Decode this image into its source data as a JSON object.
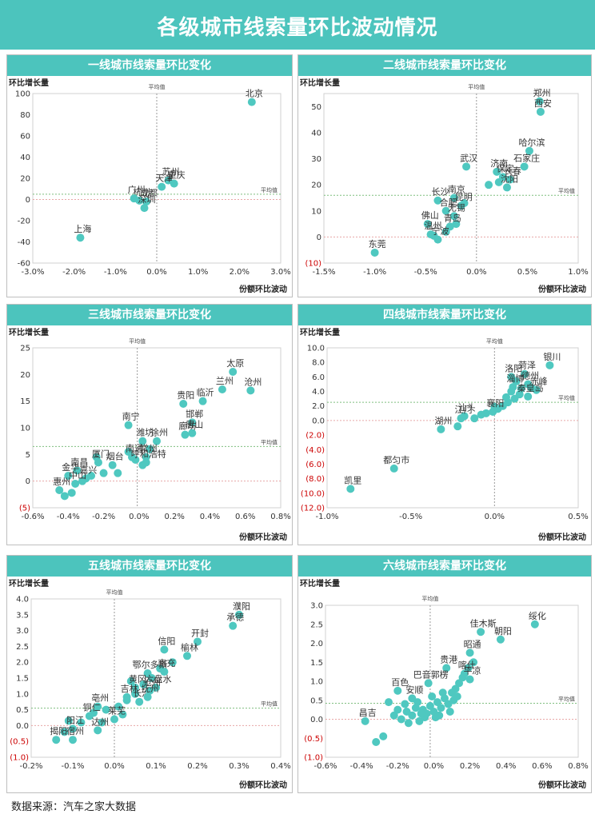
{
  "title": "各级城市线索量环比波动情况",
  "source": "数据来源：汽车之家大数据",
  "colors": {
    "accent": "#4cc4bd",
    "dot": "#4fc8c0",
    "avg_v": "#9a9a9a",
    "avg_h": "#7fbf7f",
    "zero": "#e8a6a6",
    "neg": "#cc0000"
  },
  "chart_data": [
    {
      "id": "tier1",
      "type": "scatter",
      "title": "一线城市线索量环比变化",
      "xlabel": "份额环比波动",
      "ylabel": "环比增长量",
      "avg_label_x": "平均值",
      "avg_label_y": "平均值",
      "xlim": [
        -3.0,
        3.0
      ],
      "ylim": [
        -60,
        100
      ],
      "xticks": [
        -3.0,
        -2.0,
        -1.0,
        0.0,
        1.0,
        2.0,
        3.0
      ],
      "xtick_labels": [
        "-3.0%",
        "-2.0%",
        "-1.0%",
        "0.0%",
        "1.0%",
        "2.0%",
        "3.0%"
      ],
      "yticks": [
        -60,
        -40,
        -20,
        0,
        20,
        40,
        60,
        80,
        100
      ],
      "ytick_labels": [
        "-60",
        "-40",
        "-20",
        "0",
        "20",
        "40",
        "60",
        "80",
        "100"
      ],
      "avg_x": 0.0,
      "avg_y": 5,
      "points": [
        {
          "label": "北京",
          "x": 2.3,
          "y": 92
        },
        {
          "label": "苏州",
          "x": 0.28,
          "y": 18
        },
        {
          "label": "天津",
          "x": 0.12,
          "y": 12
        },
        {
          "label": "重庆",
          "x": 0.42,
          "y": 15
        },
        {
          "label": "成都",
          "x": -0.25,
          "y": -2
        },
        {
          "label": "杭州",
          "x": -0.42,
          "y": -1
        },
        {
          "label": "广州",
          "x": -0.55,
          "y": 1
        },
        {
          "label": "深圳",
          "x": -0.3,
          "y": -8
        },
        {
          "label": "上海",
          "x": -1.85,
          "y": -36
        }
      ],
      "extra": []
    },
    {
      "id": "tier2",
      "type": "scatter",
      "title": "二线城市线索量环比变化",
      "xlabel": "份额环比波动",
      "ylabel": "环比增长量",
      "avg_label_x": "平均值",
      "avg_label_y": "平均值",
      "xlim": [
        -1.5,
        1.0
      ],
      "ylim": [
        -10,
        55
      ],
      "xticks": [
        -1.5,
        -1.0,
        -0.5,
        0.0,
        0.5,
        1.0
      ],
      "xtick_labels": [
        "-1.5%",
        "-1.0%",
        "-0.5%",
        "0.0%",
        "0.5%",
        "1.0%"
      ],
      "yticks": [
        -10,
        0,
        10,
        20,
        30,
        40,
        50
      ],
      "ytick_labels": [
        "(10)",
        "0",
        "10",
        "20",
        "30",
        "40",
        "50"
      ],
      "avg_x": 0.0,
      "avg_y": 16,
      "points": [
        {
          "label": "郑州",
          "x": 0.62,
          "y": 52
        },
        {
          "label": "西安",
          "x": 0.63,
          "y": 48
        },
        {
          "label": "哈尔滨",
          "x": 0.52,
          "y": 33
        },
        {
          "label": "石家庄",
          "x": 0.47,
          "y": 27
        },
        {
          "label": "武汉",
          "x": -0.1,
          "y": 27
        },
        {
          "label": "济南",
          "x": 0.2,
          "y": 25
        },
        {
          "label": "长春",
          "x": 0.33,
          "y": 22
        },
        {
          "label": "保定",
          "x": 0.26,
          "y": 23
        },
        {
          "label": "沈阳",
          "x": 0.3,
          "y": 19
        },
        {
          "label": "长沙",
          "x": -0.38,
          "y": 14
        },
        {
          "label": "南京",
          "x": -0.22,
          "y": 15
        },
        {
          "label": "合肥",
          "x": -0.3,
          "y": 10
        },
        {
          "label": "昆明",
          "x": -0.15,
          "y": 12
        },
        {
          "label": "无锡",
          "x": -0.22,
          "y": 8
        },
        {
          "label": "佛山",
          "x": -0.48,
          "y": 5
        },
        {
          "label": "青岛",
          "x": -0.26,
          "y": 4
        },
        {
          "label": "温州",
          "x": -0.45,
          "y": 1
        },
        {
          "label": "宁波",
          "x": -0.38,
          "y": -1
        },
        {
          "label": "东莞",
          "x": -1.0,
          "y": -6
        }
      ],
      "extra": [
        {
          "x": -0.42,
          "y": 0.5
        },
        {
          "x": -0.3,
          "y": 2
        },
        {
          "x": -0.12,
          "y": 13
        },
        {
          "x": 0.12,
          "y": 20
        },
        {
          "x": 0.22,
          "y": 21
        },
        {
          "x": -0.2,
          "y": 5
        }
      ]
    },
    {
      "id": "tier3",
      "type": "scatter",
      "title": "三线城市线索量环比变化",
      "xlabel": "份额环比波动",
      "ylabel": "环比增长量",
      "avg_label_x": "平均值",
      "avg_label_y": "平均值",
      "xlim": [
        -0.6,
        0.8
      ],
      "ylim": [
        -5,
        25
      ],
      "xticks": [
        -0.6,
        -0.4,
        -0.2,
        0.0,
        0.2,
        0.4,
        0.6,
        0.8
      ],
      "xtick_labels": [
        "-0.6%",
        "-0.4%",
        "-0.2%",
        "0.0%",
        "0.2%",
        "0.4%",
        "0.6%",
        "0.8%"
      ],
      "yticks": [
        -5,
        0,
        5,
        10,
        15,
        20,
        25
      ],
      "ytick_labels": [
        "(5)",
        "0",
        "5",
        "10",
        "15",
        "20",
        "25"
      ],
      "avg_x": -0.01,
      "avg_y": 6.5,
      "points": [
        {
          "label": "太原",
          "x": 0.53,
          "y": 20.5
        },
        {
          "label": "兰州",
          "x": 0.47,
          "y": 17.2
        },
        {
          "label": "沧州",
          "x": 0.63,
          "y": 17
        },
        {
          "label": "临沂",
          "x": 0.36,
          "y": 15
        },
        {
          "label": "贵阳",
          "x": 0.25,
          "y": 14.5
        },
        {
          "label": "邯郸",
          "x": 0.3,
          "y": 11
        },
        {
          "label": "廊坊",
          "x": 0.26,
          "y": 8.7
        },
        {
          "label": "唐山",
          "x": 0.3,
          "y": 9
        },
        {
          "label": "南宁",
          "x": -0.06,
          "y": 10.5
        },
        {
          "label": "徐州",
          "x": 0.1,
          "y": 7.5
        },
        {
          "label": "潍坊",
          "x": 0.02,
          "y": 7.5
        },
        {
          "label": "南通",
          "x": -0.04,
          "y": 4.5
        },
        {
          "label": "常州",
          "x": 0.04,
          "y": 4.5
        },
        {
          "label": "呼和浩特",
          "x": 0.04,
          "y": 3.5
        },
        {
          "label": "烟台",
          "x": -0.15,
          "y": 3
        },
        {
          "label": "厦门",
          "x": -0.23,
          "y": 3.5
        },
        {
          "label": "南昌",
          "x": -0.35,
          "y": 2
        },
        {
          "label": "金华",
          "x": -0.4,
          "y": 1
        },
        {
          "label": "嘉兴",
          "x": -0.3,
          "y": 0.5
        },
        {
          "label": "中山",
          "x": -0.36,
          "y": -0.5
        },
        {
          "label": "惠州",
          "x": -0.45,
          "y": -1.7
        }
      ],
      "extra": [
        {
          "x": -0.42,
          "y": -2.8
        },
        {
          "x": -0.38,
          "y": -2.2
        },
        {
          "x": -0.32,
          "y": 0
        },
        {
          "x": -0.27,
          "y": 1
        },
        {
          "x": -0.2,
          "y": 1.5
        },
        {
          "x": -0.12,
          "y": 1.5
        },
        {
          "x": -0.06,
          "y": 5.5
        },
        {
          "x": -0.02,
          "y": 4
        },
        {
          "x": 0.06,
          "y": 6
        },
        {
          "x": -0.24,
          "y": 4.5
        },
        {
          "x": 0.02,
          "y": 3
        }
      ]
    },
    {
      "id": "tier4",
      "type": "scatter",
      "title": "四线城市线索量环比变化",
      "xlabel": "份额环比波动",
      "ylabel": "环比增长量",
      "avg_label_x": "平均值",
      "avg_label_y": "平均值",
      "xlim": [
        -1.0,
        0.5
      ],
      "ylim": [
        -12,
        10
      ],
      "xticks": [
        -1.0,
        -0.5,
        0.0,
        0.5
      ],
      "xtick_labels": [
        "-1.0%",
        "-0.5%",
        "0.0%",
        "0.5%"
      ],
      "yticks": [
        -12,
        -10,
        -8,
        -6,
        -4,
        -2,
        0,
        2,
        4,
        6,
        8,
        10
      ],
      "ytick_labels": [
        "(12.0)",
        "(10.0)",
        "(8.0)",
        "(6.0)",
        "(4.0)",
        "(2.0)",
        "0.0",
        "2.0",
        "4.0",
        "6.0",
        "8.0",
        "10.0"
      ],
      "avg_x": 0.0,
      "avg_y": 2.5,
      "points": [
        {
          "label": "银川",
          "x": 0.33,
          "y": 7.6
        },
        {
          "label": "菏泽",
          "x": 0.18,
          "y": 6.4
        },
        {
          "label": "洛阳",
          "x": 0.1,
          "y": 6
        },
        {
          "label": "德州",
          "x": 0.2,
          "y": 5
        },
        {
          "label": "淄博",
          "x": 0.11,
          "y": 4.6
        },
        {
          "label": "赤峰",
          "x": 0.25,
          "y": 4.2
        },
        {
          "label": "秦皇岛",
          "x": 0.2,
          "y": 3.3
        },
        {
          "label": "汕头",
          "x": -0.18,
          "y": 0.6
        },
        {
          "label": "江门",
          "x": -0.2,
          "y": 0.3
        },
        {
          "label": "襄阳",
          "x": -0.01,
          "y": 1.2
        },
        {
          "label": "湖州",
          "x": -0.32,
          "y": -1.2
        },
        {
          "label": "都匀市",
          "x": -0.6,
          "y": -6.6
        },
        {
          "label": "凯里",
          "x": -0.86,
          "y": -9.4
        }
      ],
      "extra": [
        {
          "x": -0.22,
          "y": -0.8
        },
        {
          "x": -0.12,
          "y": 0.3
        },
        {
          "x": -0.08,
          "y": 0.8
        },
        {
          "x": -0.05,
          "y": 1
        },
        {
          "x": 0.02,
          "y": 1.6
        },
        {
          "x": 0.05,
          "y": 2
        },
        {
          "x": 0.08,
          "y": 2.5
        },
        {
          "x": 0.12,
          "y": 3
        },
        {
          "x": 0.15,
          "y": 3.6
        },
        {
          "x": 0.1,
          "y": 4
        },
        {
          "x": 0.16,
          "y": 4.4
        },
        {
          "x": 0.07,
          "y": 3.2
        },
        {
          "x": 0.13,
          "y": 5.4
        },
        {
          "x": 0.22,
          "y": 4.5
        },
        {
          "x": 0.0,
          "y": 1.9
        }
      ]
    },
    {
      "id": "tier5",
      "type": "scatter",
      "title": "五线城市线索量环比变化",
      "xlabel": "份额环比波动",
      "ylabel": "环比增长量",
      "avg_label_x": "平均值",
      "avg_label_y": "平均值",
      "xlim": [
        -0.2,
        0.4
      ],
      "ylim": [
        -1.0,
        4.0
      ],
      "xticks": [
        -0.2,
        -0.1,
        0.0,
        0.1,
        0.2,
        0.3,
        0.4
      ],
      "xtick_labels": [
        "-0.2%",
        "-0.1%",
        "0.0%",
        "0.1%",
        "0.2%",
        "0.3%",
        "0.4%"
      ],
      "yticks": [
        -1.0,
        -0.5,
        0.0,
        0.5,
        1.0,
        1.5,
        2.0,
        2.5,
        3.0,
        3.5,
        4.0
      ],
      "ytick_labels": [
        "(1.0)",
        "(0.5)",
        "0.0",
        "0.5",
        "1.0",
        "1.5",
        "2.0",
        "2.5",
        "3.0",
        "3.5",
        "4.0"
      ],
      "avg_x": 0.0,
      "avg_y": 0.55,
      "points": [
        {
          "label": "濮阳",
          "x": 0.3,
          "y": 3.5
        },
        {
          "label": "承德",
          "x": 0.285,
          "y": 3.15
        },
        {
          "label": "开封",
          "x": 0.2,
          "y": 2.65
        },
        {
          "label": "信阳",
          "x": 0.12,
          "y": 2.4
        },
        {
          "label": "榆林",
          "x": 0.175,
          "y": 2.2
        },
        {
          "label": "鄂尔多斯",
          "x": 0.08,
          "y": 1.65
        },
        {
          "label": "南充",
          "x": 0.12,
          "y": 1.7
        },
        {
          "label": "黄冈",
          "x": 0.05,
          "y": 1.2
        },
        {
          "label": "六盘水",
          "x": 0.1,
          "y": 1.2
        },
        {
          "label": "吉林",
          "x": 0.03,
          "y": 0.9
        },
        {
          "label": "长治",
          "x": 0.06,
          "y": 0.75
        },
        {
          "label": "沧州",
          "x": 0.085,
          "y": 1.1
        },
        {
          "label": "抚州",
          "x": 0.08,
          "y": 0.9
        },
        {
          "label": "亳州",
          "x": -0.04,
          "y": 0.6
        },
        {
          "label": "铜仁",
          "x": -0.06,
          "y": 0.3
        },
        {
          "label": "莱芜",
          "x": 0.0,
          "y": 0.2
        },
        {
          "label": "阳江",
          "x": -0.1,
          "y": -0.1
        },
        {
          "label": "达州",
          "x": -0.04,
          "y": -0.15
        },
        {
          "label": "宿州",
          "x": -0.1,
          "y": -0.45
        },
        {
          "label": "揭阳",
          "x": -0.14,
          "y": -0.45
        }
      ],
      "extra": [
        {
          "x": -0.12,
          "y": -0.2
        },
        {
          "x": -0.08,
          "y": 0.1
        },
        {
          "x": -0.05,
          "y": 0.4
        },
        {
          "x": -0.02,
          "y": 0.5
        },
        {
          "x": 0.01,
          "y": 0.6
        },
        {
          "x": 0.03,
          "y": 0.8
        },
        {
          "x": 0.05,
          "y": 1.0
        },
        {
          "x": 0.07,
          "y": 1.3
        },
        {
          "x": 0.09,
          "y": 1.5
        },
        {
          "x": 0.11,
          "y": 1.8
        },
        {
          "x": 0.14,
          "y": 2.0
        },
        {
          "x": 0.02,
          "y": 0.35
        },
        {
          "x": -0.03,
          "y": 0.1
        },
        {
          "x": 0.04,
          "y": 1.4
        },
        {
          "x": -0.11,
          "y": 0.15
        }
      ]
    },
    {
      "id": "tier6",
      "type": "scatter",
      "title": "六线城市线索量环比变化",
      "xlabel": "份额环比波动",
      "ylabel": "环比增长量",
      "avg_label_x": "平均值",
      "avg_label_y": "平均值",
      "xlim": [
        -0.6,
        0.8
      ],
      "ylim": [
        -1.0,
        3.0
      ],
      "xticks": [
        -0.6,
        -0.4,
        -0.2,
        0.0,
        0.2,
        0.4,
        0.6,
        0.8
      ],
      "xtick_labels": [
        "-0.6%",
        "-0.4%",
        "-0.2%",
        "0.0%",
        "0.2%",
        "0.4%",
        "0.6%",
        "0.8%"
      ],
      "yticks": [
        -1.0,
        -0.5,
        0.0,
        0.5,
        1.0,
        1.5,
        2.0,
        2.5,
        3.0
      ],
      "ytick_labels": [
        "(1.0)",
        "(0.5)",
        "0.0",
        "0.5",
        "1.0",
        "1.5",
        "2.0",
        "2.5",
        "3.0"
      ],
      "avg_x": -0.02,
      "avg_y": 0.42,
      "points": [
        {
          "label": "绥化",
          "x": 0.56,
          "y": 2.5
        },
        {
          "label": "佳木斯",
          "x": 0.26,
          "y": 2.3
        },
        {
          "label": "朝阳",
          "x": 0.37,
          "y": 2.1
        },
        {
          "label": "昭通",
          "x": 0.2,
          "y": 1.75
        },
        {
          "label": "贵港",
          "x": 0.07,
          "y": 1.35
        },
        {
          "label": "喀什",
          "x": 0.17,
          "y": 1.2
        },
        {
          "label": "平凉",
          "x": 0.2,
          "y": 1.05
        },
        {
          "label": "巴音郭楞",
          "x": -0.03,
          "y": 0.95
        },
        {
          "label": "百色",
          "x": -0.2,
          "y": 0.75
        },
        {
          "label": "安顺",
          "x": -0.12,
          "y": 0.55
        },
        {
          "label": "昌吉",
          "x": -0.38,
          "y": -0.05
        }
      ],
      "extra": [
        {
          "x": -0.25,
          "y": 0.45
        },
        {
          "x": -0.28,
          "y": -0.45
        },
        {
          "x": -0.32,
          "y": -0.6
        },
        {
          "x": -0.22,
          "y": 0.1
        },
        {
          "x": -0.18,
          "y": 0.0
        },
        {
          "x": -0.15,
          "y": 0.2
        },
        {
          "x": -0.12,
          "y": 0.1
        },
        {
          "x": -0.1,
          "y": 0.3
        },
        {
          "x": -0.08,
          "y": -0.05
        },
        {
          "x": -0.06,
          "y": 0.25
        },
        {
          "x": -0.04,
          "y": 0.15
        },
        {
          "x": -0.02,
          "y": 0.35
        },
        {
          "x": 0.0,
          "y": 0.2
        },
        {
          "x": 0.02,
          "y": 0.45
        },
        {
          "x": 0.04,
          "y": 0.3
        },
        {
          "x": 0.06,
          "y": 0.55
        },
        {
          "x": 0.08,
          "y": 0.4
        },
        {
          "x": 0.1,
          "y": 0.7
        },
        {
          "x": 0.12,
          "y": 0.8
        },
        {
          "x": 0.14,
          "y": 0.95
        },
        {
          "x": 0.16,
          "y": 1.1
        },
        {
          "x": 0.19,
          "y": 1.35
        },
        {
          "x": 0.22,
          "y": 1.5
        },
        {
          "x": -0.14,
          "y": -0.1
        },
        {
          "x": -0.05,
          "y": 0.05
        },
        {
          "x": 0.03,
          "y": 0.1
        },
        {
          "x": 0.09,
          "y": 0.2
        },
        {
          "x": -0.09,
          "y": 0.45
        },
        {
          "x": -0.01,
          "y": 0.6
        },
        {
          "x": 0.05,
          "y": 0.7
        },
        {
          "x": -0.2,
          "y": 0.25
        },
        {
          "x": 0.11,
          "y": 0.5
        },
        {
          "x": -0.16,
          "y": 0.4
        },
        {
          "x": 0.01,
          "y": 0.05
        },
        {
          "x": -0.07,
          "y": 0.15
        },
        {
          "x": 0.13,
          "y": 0.6
        }
      ]
    }
  ]
}
